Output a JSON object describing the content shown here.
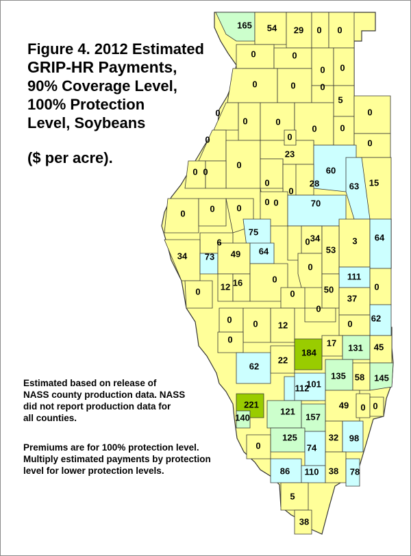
{
  "title": {
    "line1": "Figure 4. 2012 Estimated",
    "line2": "GRIP-HR Payments,",
    "line3": "90% Coverage Level,",
    "line4": "100% Protection",
    "line5": "Level, Soybeans"
  },
  "units": "($ per acre).",
  "notes": {
    "n1_l1": "Estimated based on release of",
    "n1_l2": "NASS county production data.  NASS",
    "n1_l3": "did not report production data for",
    "n1_l4": "all counties.",
    "n2_l1": "Premiums are for 100% protection level.",
    "n2_l2": "Multiply estimated payments by protection",
    "n2_l3": "level for lower protection levels."
  },
  "colors": {
    "zero_to_low": "#ffff99",
    "light_blue": "#ccffff",
    "light_green": "#ccffcc",
    "green": "#99cc00",
    "no_data": "#ffffff",
    "border": "#333333"
  },
  "county_values": [
    "165",
    "54",
    "29",
    "0",
    "0",
    "0",
    "0",
    "0",
    "0",
    "0",
    "0",
    "5",
    "0",
    "0",
    "0",
    "0",
    "0",
    "0",
    "0",
    "0",
    "0",
    "0",
    "0",
    "0",
    "23",
    "0",
    "60",
    "0",
    "0",
    "0",
    "28",
    "63",
    "15",
    "0",
    "0",
    "0",
    "0",
    "70",
    "75",
    "6",
    "0",
    "34",
    "34",
    "3",
    "64",
    "73",
    "49",
    "64",
    "0",
    "53",
    "111",
    "0",
    "12",
    "16",
    "0",
    "0",
    "50",
    "37",
    "0",
    "0",
    "12",
    "0",
    "62",
    "0",
    "0",
    "0",
    "17",
    "131",
    "45",
    "62",
    "22",
    "184",
    "135",
    "58",
    "145",
    "112",
    "101",
    "221",
    "121",
    "49",
    "0",
    "0",
    "140",
    "157",
    "125",
    "32",
    "0",
    "98",
    "74",
    "86",
    "110",
    "38",
    "78",
    "5",
    "38"
  ]
}
